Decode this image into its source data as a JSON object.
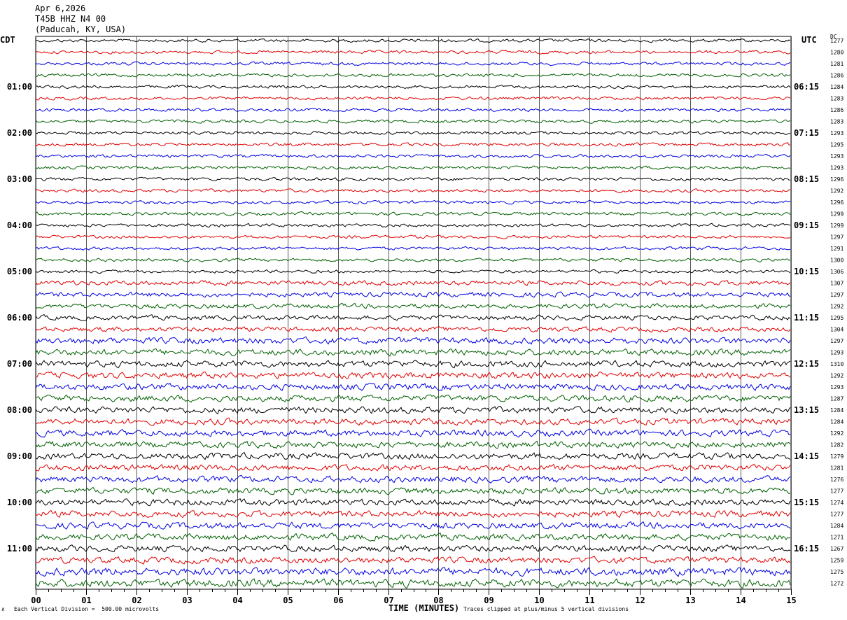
{
  "header": {
    "date": "Apr 6,2026",
    "station": "T45B HHZ N4 00",
    "location": "(Paducah, KY, USA)"
  },
  "left_zone_label": "CDT",
  "right_zone_label": "UTC",
  "dc_label": "DC",
  "footer": {
    "scale_note": "Each Vertical Division =  500.00 microvolts",
    "clip_note": "Traces clipped at plus/minus 5 vertical divisions",
    "corner_mark": "∧"
  },
  "chart_data": {
    "type": "line",
    "title": "",
    "xlabel": "TIME (MINUTES)",
    "ylabel": "",
    "x_range": [
      0,
      15
    ],
    "x_ticks": [
      "00",
      "01",
      "02",
      "03",
      "04",
      "05",
      "06",
      "07",
      "08",
      "09",
      "10",
      "11",
      "12",
      "13",
      "14",
      "15"
    ],
    "grid": true,
    "trace_colors": [
      "#000000",
      "#e00000",
      "#0000e0",
      "#006000"
    ],
    "left_hour_labels": [
      "01:00",
      "02:00",
      "03:00",
      "04:00",
      "05:00",
      "06:00",
      "07:00",
      "08:00",
      "09:00",
      "10:00",
      "11:00"
    ],
    "right_hour_labels": [
      "06:15",
      "07:15",
      "08:15",
      "09:15",
      "10:15",
      "11:15",
      "12:15",
      "13:15",
      "14:15",
      "15:15",
      "16:15"
    ],
    "trace_dc_offsets": [
      1277,
      1280,
      1281,
      1286,
      1284,
      1283,
      1286,
      1283,
      1293,
      1295,
      1293,
      1293,
      1296,
      1292,
      1296,
      1299,
      1299,
      1297,
      1291,
      1300,
      1306,
      1307,
      1297,
      1292,
      1295,
      1304,
      1297,
      1293,
      1310,
      1292,
      1293,
      1287,
      1284,
      1284,
      1292,
      1282,
      1279,
      1281,
      1276,
      1277,
      1274,
      1277,
      1284,
      1271,
      1267,
      1259,
      1275,
      1272
    ],
    "trace_noise_level": [
      2,
      2,
      2,
      2,
      2,
      2,
      2,
      2,
      2,
      2,
      2,
      2,
      2,
      2,
      2,
      2,
      2,
      2,
      2,
      2,
      2,
      3,
      3,
      3,
      3,
      3,
      4,
      4,
      4,
      4,
      4,
      4,
      4,
      4,
      4,
      4,
      4,
      4,
      4,
      4,
      4,
      4,
      4,
      4,
      4,
      4,
      5,
      5
    ]
  }
}
